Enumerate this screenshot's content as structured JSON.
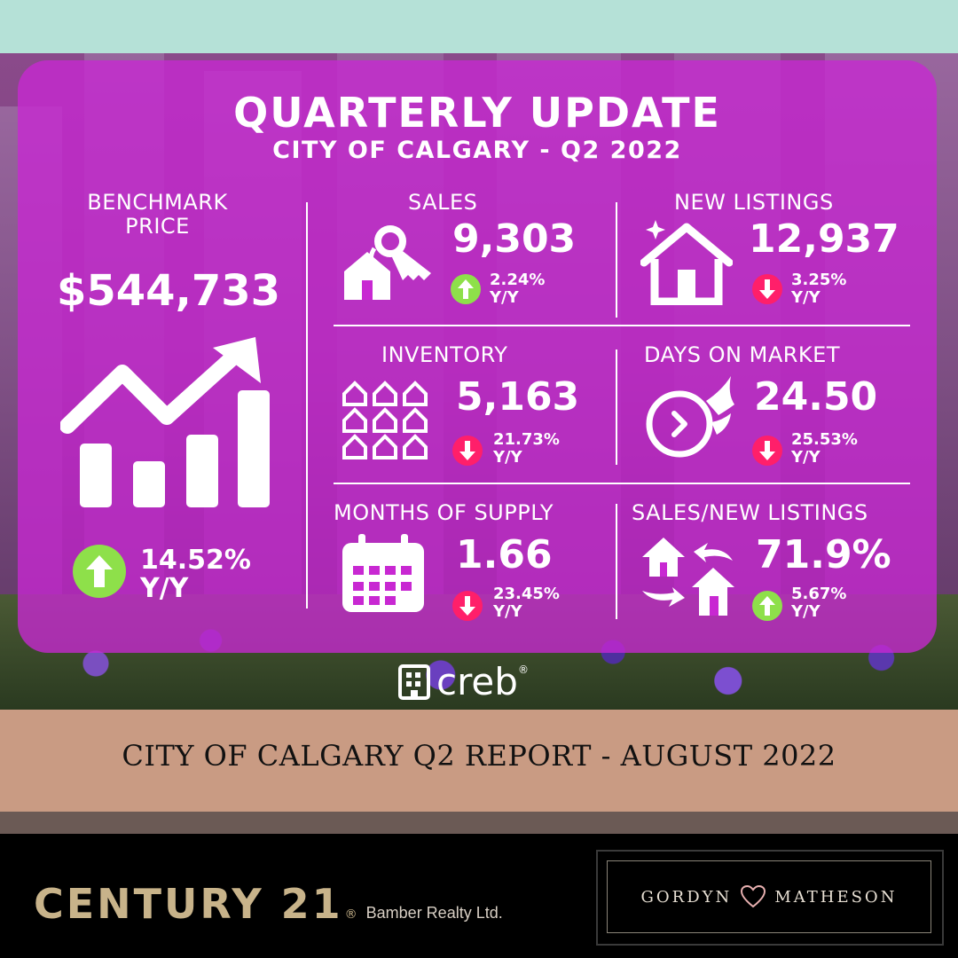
{
  "header": {
    "title": "QUARTERLY UPDATE",
    "subtitle": "CITY OF CALGARY - Q2 2022"
  },
  "benchmark": {
    "label_line1": "BENCHMARK",
    "label_line2": "PRICE",
    "value": "$544,733",
    "change": "14.52%",
    "period": "Y/Y",
    "direction": "up"
  },
  "metrics": [
    {
      "label": "SALES",
      "value": "9,303",
      "change": "2.24%",
      "period": "Y/Y",
      "direction": "up",
      "icon": "keys-house-icon"
    },
    {
      "label": "NEW LISTINGS",
      "value": "12,937",
      "change": "3.25%",
      "period": "Y/Y",
      "direction": "down",
      "icon": "new-house-icon"
    },
    {
      "label": "INVENTORY",
      "value": "5,163",
      "change": "21.73%",
      "period": "Y/Y",
      "direction": "down",
      "icon": "houses-grid-icon"
    },
    {
      "label": "DAYS ON MARKET",
      "value": "24.50",
      "change": "25.53%",
      "period": "Y/Y",
      "direction": "down",
      "icon": "fast-clock-icon"
    },
    {
      "label": "MONTHS OF SUPPLY",
      "value": "1.66",
      "change": "23.45%",
      "period": "Y/Y",
      "direction": "down",
      "icon": "calendar-icon"
    },
    {
      "label": "SALES/NEW LISTINGS",
      "value": "71.9%",
      "change": "5.67%",
      "period": "Y/Y",
      "direction": "up",
      "icon": "house-exchange-icon"
    }
  ],
  "logo": {
    "text": "creb",
    "mark": "®"
  },
  "report_banner": "CITY OF CALGARY Q2 REPORT - AUGUST 2022",
  "footer": {
    "brand": "CENTURY 21",
    "brand_mark": "®",
    "brokerage": "Bamber Realty Ltd.",
    "agent_left": "GORDYN",
    "agent_right": "MATHESON"
  },
  "colors": {
    "panel": "#c828d2",
    "up": "#8ee04a",
    "down": "#ff1f6a",
    "top_band": "#b5e1d7",
    "banner": "#c99b83",
    "gold": "#c8b38a"
  }
}
